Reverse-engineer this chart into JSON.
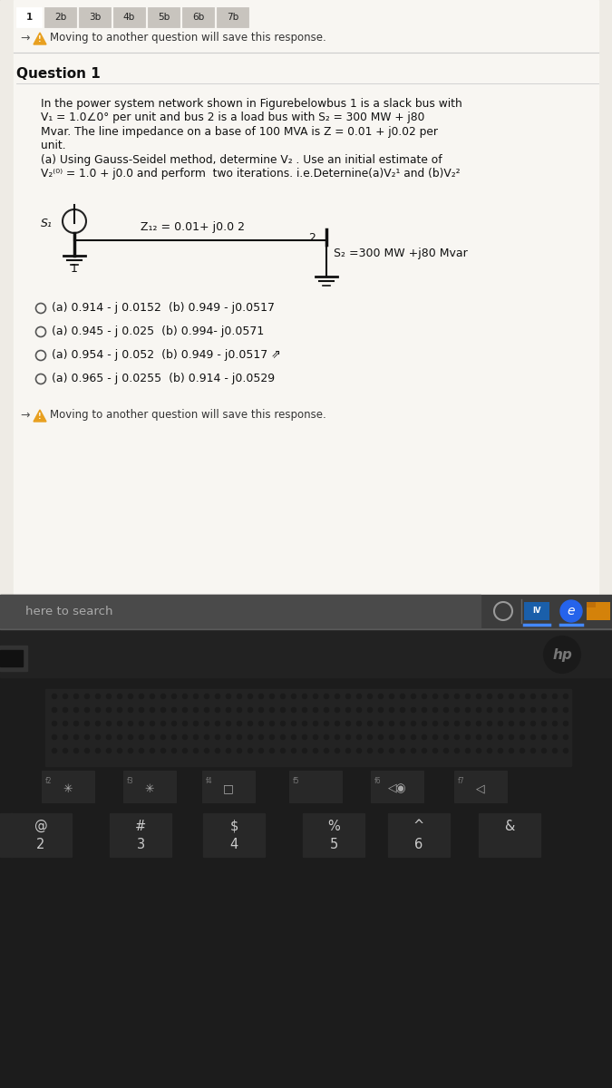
{
  "tab_labels": [
    "1",
    "2b",
    "3b",
    "4b",
    "5b",
    "6b",
    "7b"
  ],
  "warning_text": "Moving to another question will save this response.",
  "question_title": "Question 1",
  "q_lines": [
    "In the power system network shown in Figurebelowbus 1 is a slack bus with",
    "V₁ = 1.0∠0° per unit and bus 2 is a load bus with S₂ = 300 MW + j80",
    "Mvar. The line impedance on a base of 100 MVA is Z = 0.01 + j0.02 per",
    "unit.",
    "(a) Using Gauss-Seidel method, determine V₂ . Use an initial estimate of",
    "V₂⁽⁰⁾ = 1.0 + j0.0 and perform  two iterations. i.e.Deternine(a)V₂¹ and (b)V₂²"
  ],
  "circuit_z_label": "Z₁₂ = 0.01+ j0.0 2",
  "circuit_s1_label": "S₁",
  "circuit_bus2_label": "2",
  "circuit_s2_label": "S₂ =300 MW +j80 Mvar",
  "options": [
    "(a) 0.914 - j 0.0152  (b) 0.949 - j0.0517",
    "(a) 0.945 - j 0.025  (b) 0.994- j0.0571",
    "(a) 0.954 - j 0.052  (b) 0.949 - j0.0517",
    "(a) 0.965 - j 0.0255  (b) 0.914 - j0.0529"
  ],
  "footer_warning": "Moving to another question will save this response.",
  "searchbar_text": "here to search",
  "screen_bg": "#eeebe5",
  "content_bg": "#f5f2ee",
  "white_content": "#f8f6f2",
  "laptop_dark": "#1c1c1c",
  "laptop_mid": "#252525",
  "speaker_color": "#2a2a2a",
  "key_color": "#282828",
  "key_edge": "#3a3a3a",
  "taskbar_bg": "#3c3c3c",
  "taskbar_search_bg": "#4a4a4a"
}
